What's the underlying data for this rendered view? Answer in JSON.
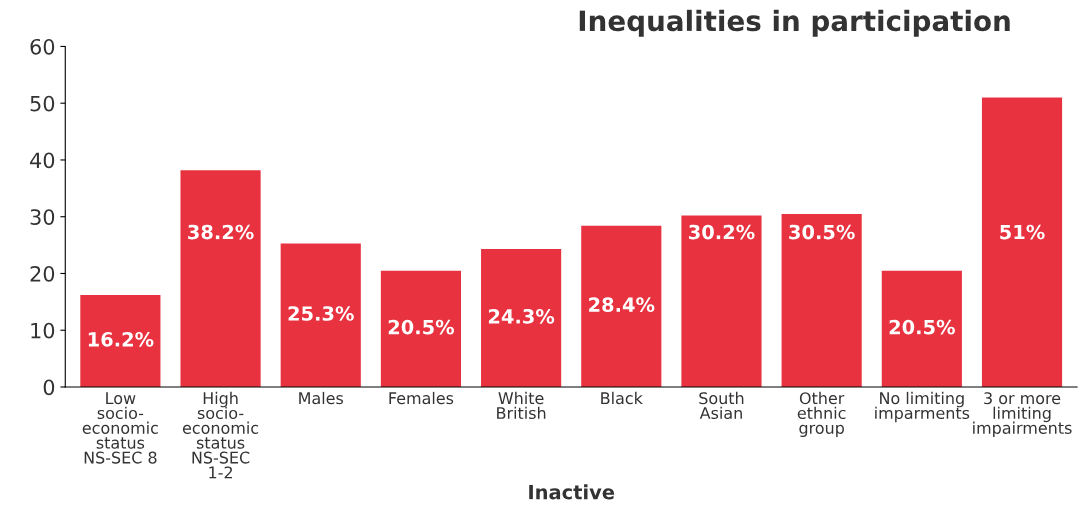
{
  "chart_data": {
    "type": "bar",
    "title": "Inequalities in participation",
    "xlabel": "Inactive",
    "categories": [
      "Low\nsocio-\neconomic\nstatus\nNS-SEC 8",
      "High\nsocio-\neconomic\nstatus\nNS-SEC\n1-2",
      "Males",
      "Females",
      "White\nBritish",
      "Black",
      "South\nAsian",
      "Other\nethnic\ngroup",
      "No limiting\nimparments",
      "3 or more\nlimiting\nimpairments"
    ],
    "values": [
      16.2,
      38.2,
      25.3,
      20.5,
      24.3,
      28.4,
      30.2,
      30.5,
      20.5,
      51
    ],
    "value_labels": [
      "16.2%",
      "38.2%",
      "25.3%",
      "20.5%",
      "24.3%",
      "28.4%",
      "30.2%",
      "30.5%",
      "20.5%",
      "51%"
    ],
    "color": "#e8323f",
    "ylim": [
      0,
      60
    ],
    "yticks": [
      0,
      10,
      20,
      30,
      40,
      50,
      60
    ],
    "grid": false,
    "legend": false
  }
}
